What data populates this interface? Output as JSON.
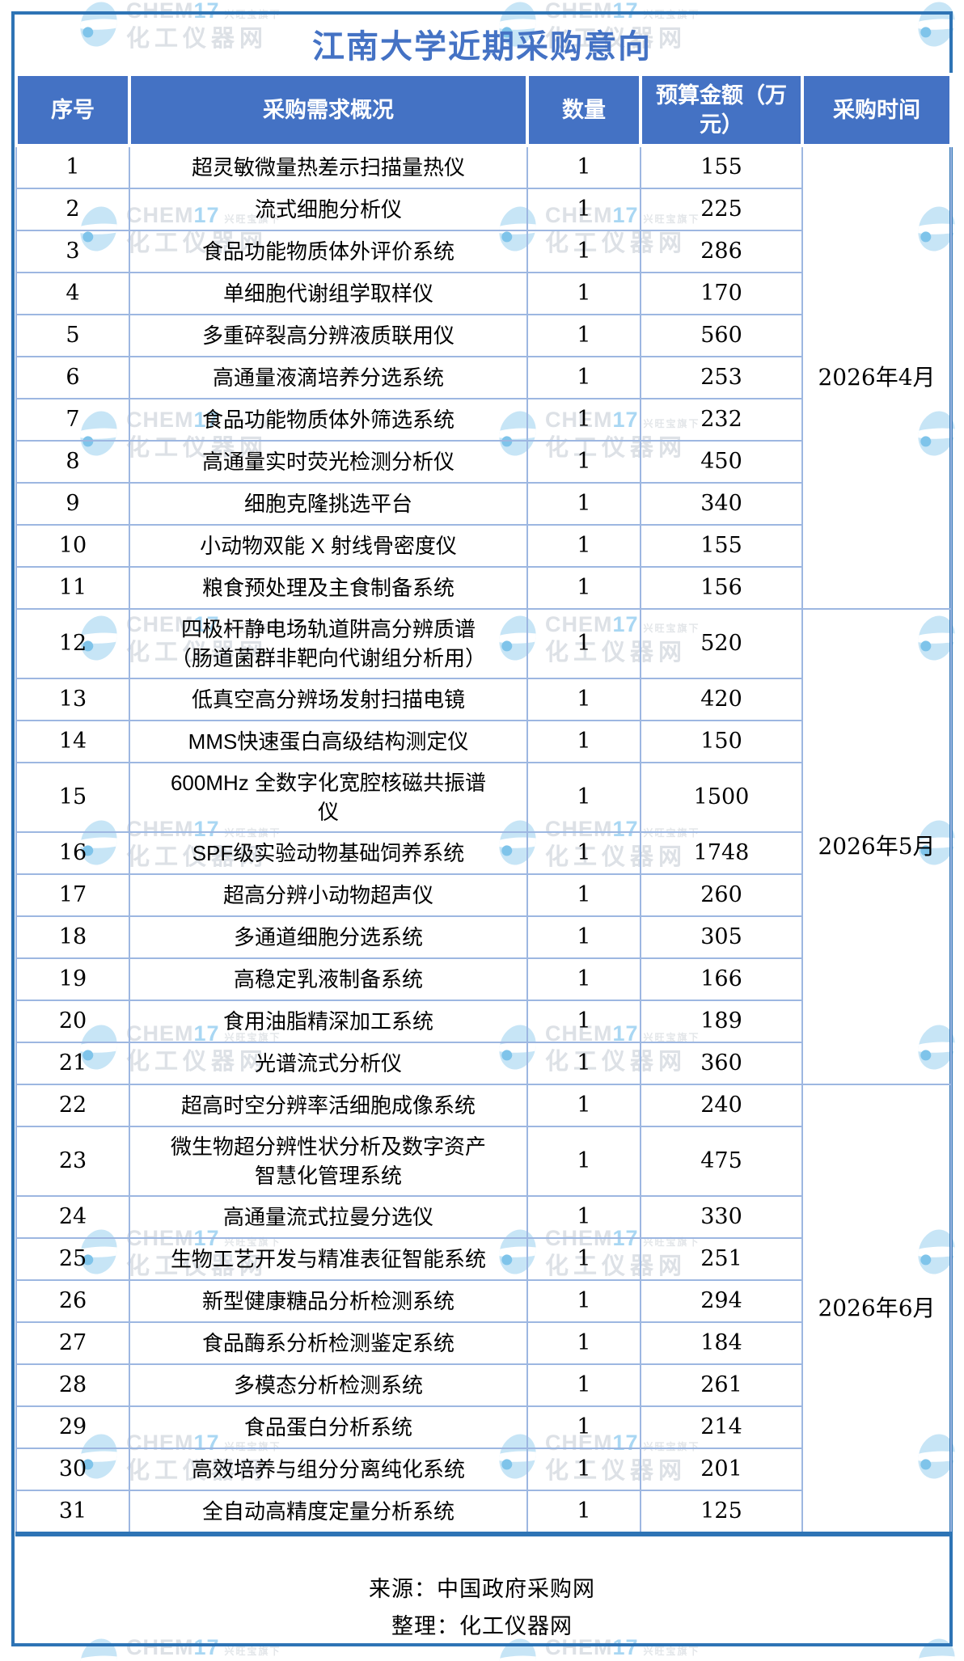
{
  "title": "江南大学近期采购意向",
  "table": {
    "headers": [
      "序号",
      "采购需求概况",
      "数量",
      "预算金额（万元）",
      "采购时间"
    ],
    "rows": [
      {
        "no": "1",
        "item": "超灵敏微量热差示扫描量热仪",
        "qty": "1",
        "budget": "155"
      },
      {
        "no": "2",
        "item": "流式细胞分析仪",
        "qty": "1",
        "budget": "225"
      },
      {
        "no": "3",
        "item": "食品功能物质体外评价系统",
        "qty": "1",
        "budget": "286"
      },
      {
        "no": "4",
        "item": "单细胞代谢组学取样仪",
        "qty": "1",
        "budget": "170"
      },
      {
        "no": "5",
        "item": "多重碎裂高分辨液质联用仪",
        "qty": "1",
        "budget": "560"
      },
      {
        "no": "6",
        "item": "高通量液滴培养分选系统",
        "qty": "1",
        "budget": "253"
      },
      {
        "no": "7",
        "item": "食品功能物质体外筛选系统",
        "qty": "1",
        "budget": "232"
      },
      {
        "no": "8",
        "item": "高通量实时荧光检测分析仪",
        "qty": "1",
        "budget": "450"
      },
      {
        "no": "9",
        "item": "细胞克隆挑选平台",
        "qty": "1",
        "budget": "340"
      },
      {
        "no": "10",
        "item": "小动物双能 X 射线骨密度仪",
        "qty": "1",
        "budget": "155"
      },
      {
        "no": "11",
        "item": "粮食预处理及主食制备系统",
        "qty": "1",
        "budget": "156"
      },
      {
        "no": "12",
        "item": "四极杆静电场轨道阱高分辨质谱\n（肠道菌群非靶向代谢组分析用）",
        "qty": "1",
        "budget": "520"
      },
      {
        "no": "13",
        "item": "低真空高分辨场发射扫描电镜",
        "qty": "1",
        "budget": "420"
      },
      {
        "no": "14",
        "item": "MMS快速蛋白高级结构测定仪",
        "qty": "1",
        "budget": "150"
      },
      {
        "no": "15",
        "item": "600MHz 全数字化宽腔核磁共振谱\n仪",
        "qty": "1",
        "budget": "1500"
      },
      {
        "no": "16",
        "item": "SPF级实验动物基础饲养系统",
        "qty": "1",
        "budget": "1748"
      },
      {
        "no": "17",
        "item": "超高分辨小动物超声仪",
        "qty": "1",
        "budget": "260"
      },
      {
        "no": "18",
        "item": "多通道细胞分选系统",
        "qty": "1",
        "budget": "305"
      },
      {
        "no": "19",
        "item": "高稳定乳液制备系统",
        "qty": "1",
        "budget": "166"
      },
      {
        "no": "20",
        "item": "食用油脂精深加工系统",
        "qty": "1",
        "budget": "189"
      },
      {
        "no": "21",
        "item": "光谱流式分析仪",
        "qty": "1",
        "budget": "360"
      },
      {
        "no": "22",
        "item": "超高时空分辨率活细胞成像系统",
        "qty": "1",
        "budget": "240"
      },
      {
        "no": "23",
        "item": "微生物超分辨性状分析及数字资产\n智慧化管理系统",
        "qty": "1",
        "budget": "475"
      },
      {
        "no": "24",
        "item": "高通量流式拉曼分选仪",
        "qty": "1",
        "budget": "330"
      },
      {
        "no": "25",
        "item": "生物工艺开发与精准表征智能系统",
        "qty": "1",
        "budget": "251"
      },
      {
        "no": "26",
        "item": "新型健康糖品分析检测系统",
        "qty": "1",
        "budget": "294"
      },
      {
        "no": "27",
        "item": "食品酶系分析检测鉴定系统",
        "qty": "1",
        "budget": "184"
      },
      {
        "no": "28",
        "item": "多模态分析检测系统",
        "qty": "1",
        "budget": "261"
      },
      {
        "no": "29",
        "item": "食品蛋白分析系统",
        "qty": "1",
        "budget": "214"
      },
      {
        "no": "30",
        "item": "高效培养与组分分离纯化系统",
        "qty": "1",
        "budget": "201"
      },
      {
        "no": "31",
        "item": "全自动高精度定量分析系统",
        "qty": "1",
        "budget": "125"
      }
    ],
    "groups": [
      {
        "date": "2026年4月",
        "from": 1,
        "to": 11
      },
      {
        "date": "2026年5月",
        "from": 12,
        "to": 21
      },
      {
        "date": "2026年6月",
        "from": 22,
        "to": 31
      }
    ]
  },
  "footer": {
    "line1": "来源：中国政府采购网",
    "line2": "整理：化工仪器网"
  },
  "watermark": {
    "brand_main": "CHEM",
    "brand_num": "17",
    "brand_sub": "兴旺宝旗下",
    "site": "化工仪器网"
  },
  "colors": {
    "header_bg": "#4472C4",
    "title_text": "#4472C4",
    "grid_line": "#9DB7E1",
    "outer_border": "#2E74B5",
    "watermark_gray": "#DDE1E6",
    "watermark_blue": "#A9D7F3"
  }
}
